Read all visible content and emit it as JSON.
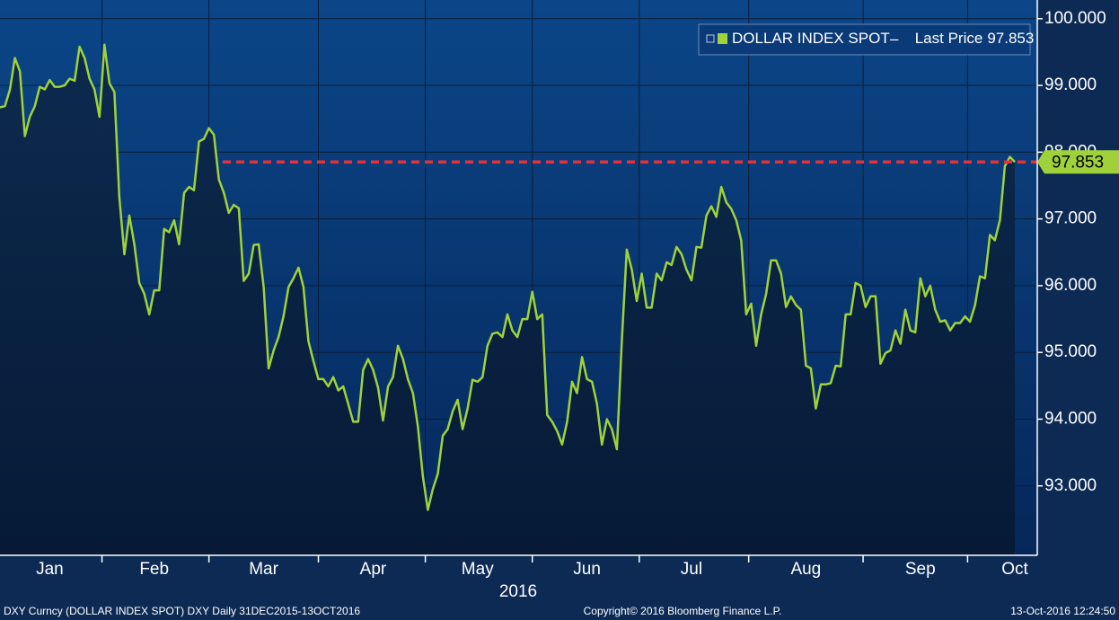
{
  "chart_data": {
    "type": "line",
    "series": [
      {
        "name": "DOLLAR INDEX SPOT",
        "color": "#9fd23a",
        "values": [
          98.67,
          98.69,
          98.94,
          99.41,
          99.21,
          98.24,
          98.53,
          98.69,
          98.98,
          98.94,
          99.08,
          98.98,
          98.98,
          99.0,
          99.1,
          99.07,
          99.58,
          99.41,
          99.1,
          98.94,
          98.53,
          99.61,
          99.03,
          98.9,
          97.32,
          96.47,
          97.05,
          96.62,
          96.04,
          95.88,
          95.57,
          95.93,
          95.93,
          96.85,
          96.8,
          96.98,
          96.62,
          97.39,
          97.48,
          97.43,
          98.16,
          98.2,
          98.36,
          98.26,
          97.59,
          97.39,
          97.09,
          97.21,
          97.16,
          96.07,
          96.18,
          96.61,
          96.62,
          95.98,
          94.76,
          95.03,
          95.23,
          95.54,
          95.98,
          96.11,
          96.27,
          95.98,
          95.17,
          94.87,
          94.6,
          94.6,
          94.49,
          94.63,
          94.43,
          94.49,
          94.23,
          93.96,
          93.96,
          94.74,
          94.9,
          94.74,
          94.47,
          93.98,
          94.49,
          94.63,
          95.1,
          94.9,
          94.6,
          94.39,
          93.89,
          93.15,
          92.64,
          92.95,
          93.18,
          93.75,
          93.85,
          94.12,
          94.29,
          93.85,
          94.16,
          94.59,
          94.56,
          94.63,
          95.1,
          95.28,
          95.3,
          95.23,
          95.57,
          95.33,
          95.23,
          95.5,
          95.5,
          95.91,
          95.5,
          95.57,
          94.06,
          93.96,
          93.82,
          93.62,
          93.96,
          94.56,
          94.39,
          94.93,
          94.6,
          94.56,
          94.23,
          93.62,
          94.0,
          93.85,
          93.55,
          95.17,
          96.54,
          96.24,
          95.77,
          96.18,
          95.67,
          95.67,
          96.18,
          96.08,
          96.35,
          96.31,
          96.58,
          96.47,
          96.24,
          96.08,
          96.58,
          96.57,
          97.05,
          97.19,
          97.03,
          97.48,
          97.25,
          97.15,
          96.98,
          96.68,
          95.57,
          95.73,
          95.1,
          95.57,
          95.87,
          96.38,
          96.38,
          96.18,
          95.68,
          95.84,
          95.71,
          95.64,
          94.8,
          94.76,
          94.16,
          94.52,
          94.52,
          94.54,
          94.8,
          94.79,
          95.57,
          95.57,
          96.04,
          96.0,
          95.68,
          95.84,
          95.84,
          94.83,
          94.99,
          95.03,
          95.33,
          95.13,
          95.64,
          95.33,
          95.3,
          96.11,
          95.84,
          96.0,
          95.64,
          95.46,
          95.48,
          95.33,
          95.44,
          95.44,
          95.54,
          95.46,
          95.71,
          96.14,
          96.11,
          96.76,
          96.68,
          96.98,
          97.79,
          97.93,
          97.853
        ]
      }
    ],
    "categories": [
      null,
      null,
      null,
      null,
      null,
      null,
      null,
      null,
      null,
      null,
      "Jan",
      null,
      null,
      null,
      null,
      null,
      null,
      null,
      null,
      null,
      null,
      null,
      null,
      null,
      null,
      null,
      null,
      null,
      null,
      null,
      null,
      "Feb",
      null,
      null,
      null,
      null,
      null,
      null,
      null,
      null,
      null,
      null,
      null,
      null,
      null,
      null,
      null,
      null,
      null,
      null,
      null,
      null,
      null,
      "Mar",
      null,
      null,
      null,
      null,
      null,
      null,
      null,
      null,
      null,
      null,
      null,
      null,
      null,
      null,
      null,
      null,
      null,
      null,
      null,
      null,
      null,
      "Apr",
      null,
      null,
      null,
      null,
      null,
      null,
      null,
      null,
      null,
      null,
      null,
      null,
      null,
      null,
      null,
      null,
      null,
      null,
      null,
      null,
      "May",
      null,
      null,
      null,
      null,
      null,
      null,
      null,
      null,
      null,
      null,
      null,
      null,
      null,
      null,
      null,
      null,
      null,
      null,
      null,
      null,
      null,
      "Jun",
      null,
      null,
      null,
      null,
      null,
      null,
      null,
      null,
      null,
      null,
      null,
      null,
      null,
      null,
      null,
      null,
      null,
      null,
      null,
      null,
      "Jul",
      null,
      null,
      null,
      null,
      null,
      null,
      null,
      null,
      null,
      null,
      null,
      null,
      null,
      null,
      null,
      null,
      null,
      null,
      null,
      null,
      null,
      null,
      "Aug",
      null,
      null,
      null,
      null,
      null,
      null,
      null,
      null,
      null,
      null,
      null,
      null,
      null,
      null,
      null,
      null,
      null,
      null,
      null,
      null,
      null,
      null,
      "Sep",
      null,
      null,
      null,
      null,
      null,
      null,
      null,
      null,
      null,
      null,
      null,
      null,
      null,
      null,
      null,
      null,
      null,
      null,
      "Oct"
    ],
    "x_label": "2016",
    "last_price_label": "Last Price",
    "ylim": [
      91.96,
      100.28
    ],
    "yticks": [
      {
        "value": 93,
        "label": "93.000"
      },
      {
        "value": 94,
        "label": "94.000"
      },
      {
        "value": 95,
        "label": "95.000"
      },
      {
        "value": 96,
        "label": "96.000"
      },
      {
        "value": 97,
        "label": "97.000"
      },
      {
        "value": 98,
        "label": "98.000"
      },
      {
        "value": 99,
        "label": "99.000"
      },
      {
        "value": 100,
        "label": "100.000"
      }
    ],
    "grid": true,
    "legend": "upper right"
  },
  "footer": {
    "left": "DXY Curncy (DOLLAR INDEX SPOT) DXY  Daily 31DEC2015-13OCT2016",
    "center": "Copyright© 2016 Bloomberg Finance L.P.",
    "right": "13-Oct-2016 12:24:50"
  }
}
